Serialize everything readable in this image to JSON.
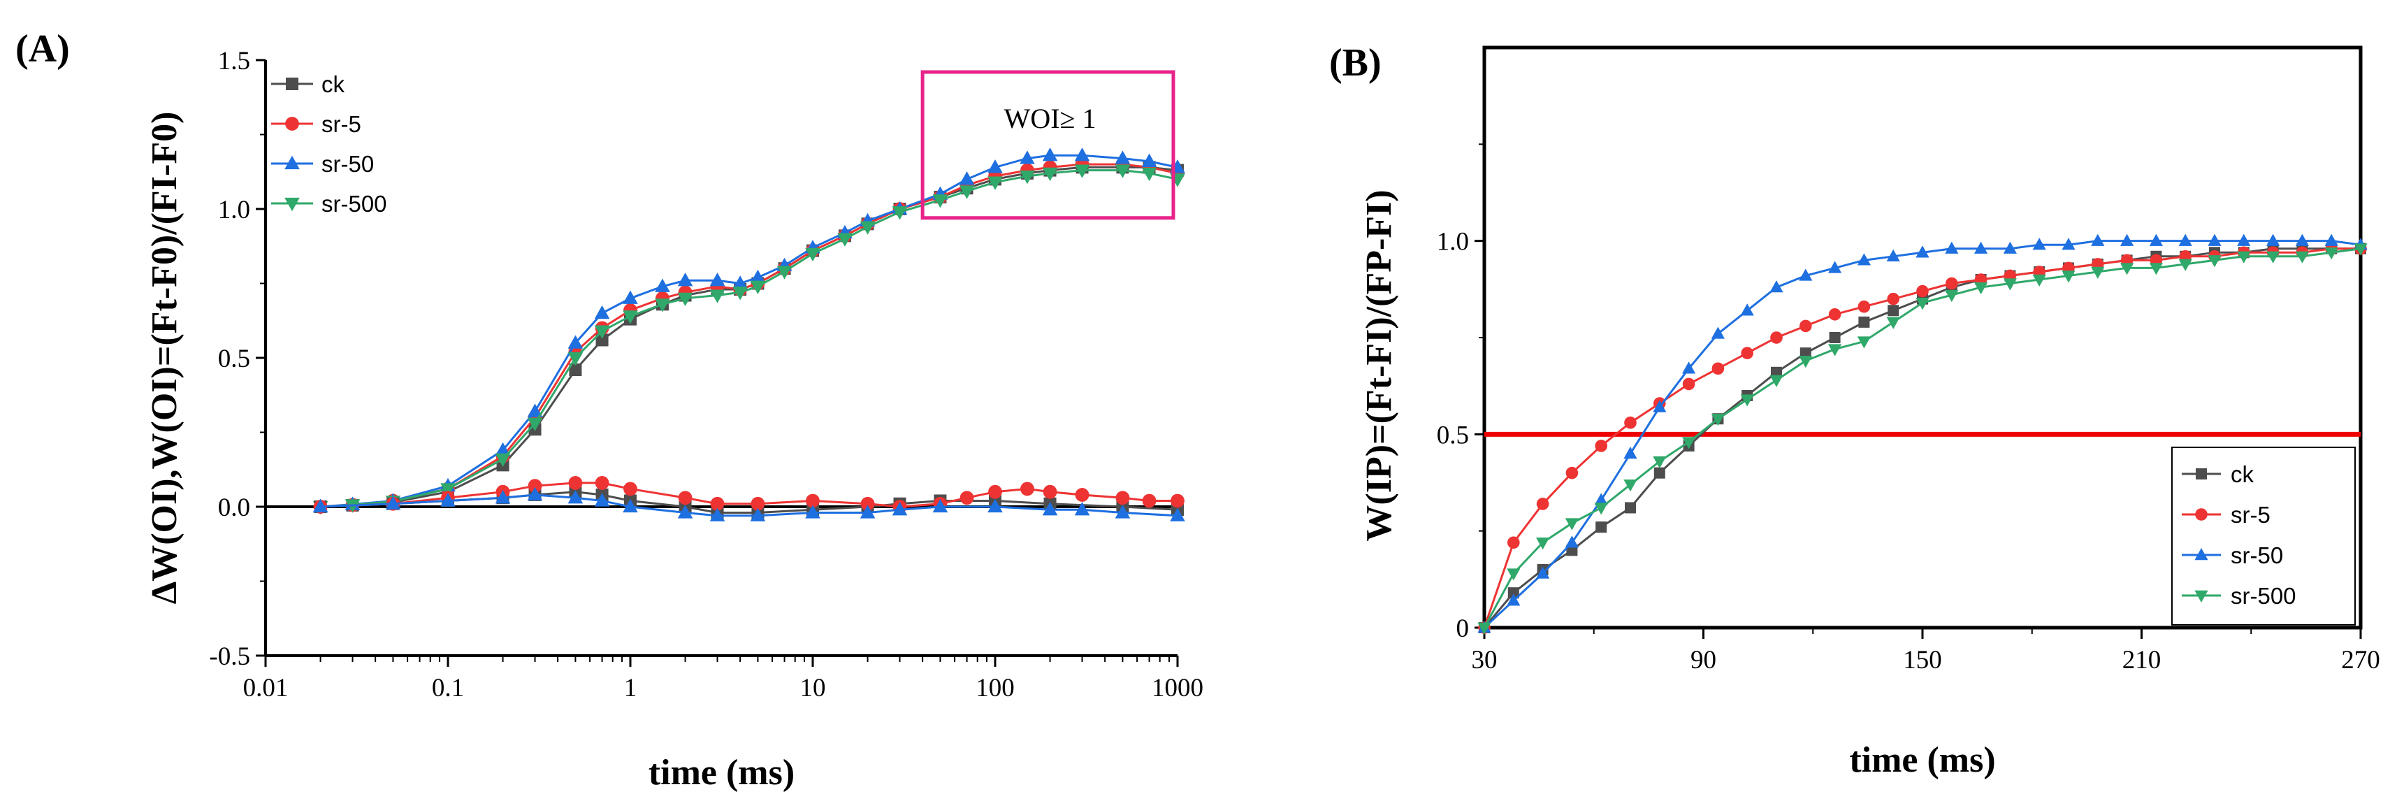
{
  "colors": {
    "ck": "#4d4d4d",
    "sr5": "#ee3333",
    "sr50": "#1e6fe0",
    "sr500": "#2fa86a",
    "reference": "#ee0000",
    "annotation": "#e8238a"
  },
  "chart_data": [
    {
      "panel_label": "(A)",
      "type": "scatter",
      "xscale": "log",
      "xlim": [
        0.01,
        1000
      ],
      "ylim": [
        -0.5,
        1.5
      ],
      "xlabel": "time (ms)",
      "ylabel": "ΔW(OI),W(OI)=(Ft-F0)/(FI-F0)",
      "xticks": [
        0.01,
        0.1,
        1,
        10,
        100,
        1000
      ],
      "xtick_labels": [
        "0.01",
        "0.1",
        "1",
        "10",
        "100",
        "1000"
      ],
      "yticks": [
        -0.5,
        0.0,
        0.5,
        1.0,
        1.5
      ],
      "ytick_labels": [
        "-0.5",
        "0.0",
        "0.5",
        "1.0",
        "1.5"
      ],
      "legend": {
        "position": "top-left",
        "entries": [
          "ck",
          "sr-5",
          "sr-50",
          "sr-500"
        ]
      },
      "annotation": {
        "text": "WOI≥ 1",
        "x_range": [
          40,
          1000
        ],
        "y_range": [
          0.97,
          1.46
        ]
      },
      "zero_line": 0,
      "series": [
        {
          "name": "ck",
          "marker": "square",
          "x": [
            0.02,
            0.03,
            0.05,
            0.1,
            0.2,
            0.3,
            0.5,
            0.7,
            1,
            1.5,
            2,
            3,
            4,
            5,
            7,
            10,
            15,
            20,
            30,
            50,
            70,
            100,
            150,
            200,
            300,
            500,
            700,
            1000
          ],
          "values": [
            0,
            0.005,
            0.015,
            0.05,
            0.14,
            0.26,
            0.46,
            0.56,
            0.63,
            0.68,
            0.71,
            0.73,
            0.73,
            0.75,
            0.8,
            0.86,
            0.91,
            0.95,
            1.0,
            1.04,
            1.07,
            1.1,
            1.12,
            1.13,
            1.14,
            1.14,
            1.14,
            1.13
          ]
        },
        {
          "name": "sr-5",
          "marker": "circle",
          "x": [
            0.02,
            0.03,
            0.05,
            0.1,
            0.2,
            0.3,
            0.5,
            0.7,
            1,
            1.5,
            2,
            3,
            4,
            5,
            7,
            10,
            15,
            20,
            30,
            50,
            70,
            100,
            150,
            200,
            300,
            500,
            700,
            1000
          ],
          "values": [
            0,
            0.006,
            0.02,
            0.06,
            0.17,
            0.3,
            0.52,
            0.6,
            0.66,
            0.7,
            0.72,
            0.74,
            0.73,
            0.75,
            0.8,
            0.86,
            0.91,
            0.95,
            1.0,
            1.04,
            1.08,
            1.11,
            1.13,
            1.14,
            1.15,
            1.15,
            1.14,
            1.12
          ]
        },
        {
          "name": "sr-50",
          "marker": "triangle-up",
          "x": [
            0.02,
            0.03,
            0.05,
            0.1,
            0.2,
            0.3,
            0.5,
            0.7,
            1,
            1.5,
            2,
            3,
            4,
            5,
            7,
            10,
            15,
            20,
            30,
            50,
            70,
            100,
            150,
            200,
            300,
            500,
            700,
            1000
          ],
          "values": [
            0,
            0.008,
            0.02,
            0.07,
            0.19,
            0.32,
            0.55,
            0.65,
            0.7,
            0.74,
            0.76,
            0.76,
            0.75,
            0.77,
            0.81,
            0.87,
            0.92,
            0.96,
            1.0,
            1.05,
            1.1,
            1.14,
            1.17,
            1.18,
            1.18,
            1.17,
            1.16,
            1.14
          ]
        },
        {
          "name": "sr-500",
          "marker": "triangle-down",
          "x": [
            0.02,
            0.03,
            0.05,
            0.1,
            0.2,
            0.3,
            0.5,
            0.7,
            1,
            1.5,
            2,
            3,
            4,
            5,
            7,
            10,
            15,
            20,
            30,
            50,
            70,
            100,
            150,
            200,
            300,
            500,
            700,
            1000
          ],
          "values": [
            0,
            0.006,
            0.018,
            0.06,
            0.16,
            0.28,
            0.5,
            0.59,
            0.64,
            0.68,
            0.7,
            0.71,
            0.72,
            0.74,
            0.79,
            0.85,
            0.9,
            0.94,
            0.99,
            1.03,
            1.06,
            1.09,
            1.11,
            1.12,
            1.13,
            1.13,
            1.12,
            1.1
          ]
        },
        {
          "name": "ΔW ck",
          "marker": "square",
          "x": [
            0.02,
            0.05,
            0.1,
            0.2,
            0.3,
            0.5,
            0.7,
            1,
            2,
            3,
            5,
            10,
            20,
            30,
            50,
            100,
            200,
            500,
            1000
          ],
          "values": [
            0,
            0.01,
            0.02,
            0.03,
            0.04,
            0.05,
            0.04,
            0.02,
            0.0,
            -0.02,
            -0.02,
            -0.01,
            0.0,
            0.01,
            0.02,
            0.02,
            0.01,
            0.0,
            -0.01
          ]
        },
        {
          "name": "ΔW sr-5",
          "marker": "circle",
          "x": [
            0.02,
            0.05,
            0.1,
            0.2,
            0.3,
            0.5,
            0.7,
            1,
            2,
            3,
            5,
            10,
            20,
            30,
            50,
            70,
            100,
            150,
            200,
            300,
            500,
            700,
            1000
          ],
          "values": [
            0,
            0.01,
            0.03,
            0.05,
            0.07,
            0.08,
            0.08,
            0.06,
            0.03,
            0.01,
            0.01,
            0.02,
            0.01,
            0.0,
            0.01,
            0.03,
            0.05,
            0.06,
            0.05,
            0.04,
            0.03,
            0.02,
            0.02
          ]
        },
        {
          "name": "ΔW sr-50",
          "marker": "triangle-up",
          "x": [
            0.02,
            0.05,
            0.1,
            0.2,
            0.3,
            0.5,
            0.7,
            1,
            2,
            3,
            5,
            10,
            20,
            30,
            50,
            100,
            200,
            300,
            500,
            1000
          ],
          "values": [
            0,
            0.01,
            0.02,
            0.03,
            0.04,
            0.03,
            0.02,
            0.0,
            -0.02,
            -0.03,
            -0.03,
            -0.02,
            -0.02,
            -0.01,
            0.0,
            0.0,
            -0.01,
            -0.01,
            -0.02,
            -0.03
          ]
        }
      ]
    },
    {
      "panel_label": "(B)",
      "type": "line",
      "xlim": [
        30,
        270
      ],
      "ylim": [
        0,
        1.5
      ],
      "xlabel": "time (ms)",
      "ylabel": "W(IP)=(Ft-FI)/(FP-FI)",
      "xticks": [
        30,
        90,
        150,
        210,
        270
      ],
      "xtick_labels": [
        "30",
        "90",
        "150",
        "210",
        "270"
      ],
      "yticks": [
        0,
        0.5,
        1.0
      ],
      "ytick_labels": [
        "0",
        "0.5",
        "1.0"
      ],
      "reference_line": 0.5,
      "legend": {
        "position": "bottom-right",
        "entries": [
          "ck",
          "sr-5",
          "sr-50",
          "sr-500"
        ]
      },
      "x": [
        30,
        38,
        46,
        54,
        62,
        70,
        78,
        86,
        94,
        102,
        110,
        118,
        126,
        134,
        142,
        150,
        158,
        166,
        174,
        182,
        190,
        198,
        206,
        214,
        222,
        230,
        238,
        246,
        254,
        262,
        270
      ],
      "series": [
        {
          "name": "ck",
          "marker": "square",
          "values": [
            0,
            0.09,
            0.15,
            0.2,
            0.26,
            0.31,
            0.4,
            0.47,
            0.54,
            0.6,
            0.66,
            0.71,
            0.75,
            0.79,
            0.82,
            0.85,
            0.88,
            0.9,
            0.91,
            0.92,
            0.93,
            0.94,
            0.95,
            0.96,
            0.96,
            0.97,
            0.97,
            0.98,
            0.98,
            0.98,
            0.98
          ]
        },
        {
          "name": "sr-5",
          "marker": "circle",
          "values": [
            0,
            0.22,
            0.32,
            0.4,
            0.47,
            0.53,
            0.58,
            0.63,
            0.67,
            0.71,
            0.75,
            0.78,
            0.81,
            0.83,
            0.85,
            0.87,
            0.89,
            0.9,
            0.91,
            0.92,
            0.93,
            0.94,
            0.95,
            0.95,
            0.96,
            0.96,
            0.97,
            0.97,
            0.97,
            0.98,
            0.98
          ]
        },
        {
          "name": "sr-50",
          "marker": "triangle-up",
          "values": [
            0,
            0.07,
            0.14,
            0.22,
            0.33,
            0.45,
            0.57,
            0.67,
            0.76,
            0.82,
            0.88,
            0.91,
            0.93,
            0.95,
            0.96,
            0.97,
            0.98,
            0.98,
            0.98,
            0.99,
            0.99,
            1.0,
            1.0,
            1.0,
            1.0,
            1.0,
            1.0,
            1.0,
            1.0,
            1.0,
            0.99
          ]
        },
        {
          "name": "sr-500",
          "marker": "triangle-down",
          "values": [
            0,
            0.14,
            0.22,
            0.27,
            0.31,
            0.37,
            0.43,
            0.48,
            0.54,
            0.59,
            0.64,
            0.69,
            0.72,
            0.74,
            0.79,
            0.84,
            0.86,
            0.88,
            0.89,
            0.9,
            0.91,
            0.92,
            0.93,
            0.93,
            0.94,
            0.95,
            0.96,
            0.96,
            0.96,
            0.97,
            0.98
          ]
        }
      ]
    }
  ]
}
